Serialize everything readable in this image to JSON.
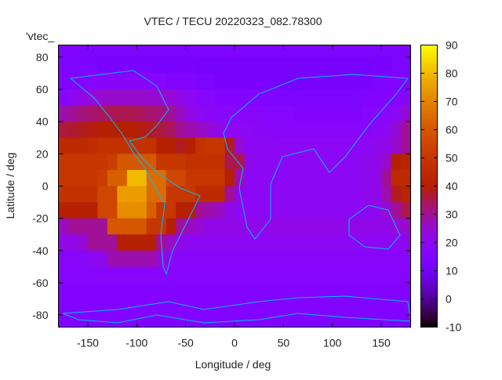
{
  "chart_data": {
    "type": "heatmap",
    "title": "VTEC / TECU 20220323_082.78300",
    "xlabel": "Longitude / deg",
    "ylabel": "Latitude / deg",
    "legend_key": "'vtec_",
    "xlim": [
      -180,
      180
    ],
    "ylim": [
      -87.5,
      87.5
    ],
    "xticks": [
      -150,
      -100,
      -50,
      0,
      50,
      100,
      150
    ],
    "yticks": [
      -80,
      -60,
      -40,
      -20,
      0,
      20,
      40,
      60,
      80
    ],
    "colorbar": {
      "range": [
        -10,
        90
      ],
      "ticks": [
        -10,
        0,
        10,
        20,
        30,
        40,
        50,
        60,
        70,
        80,
        90
      ]
    },
    "lon_centers": [
      -175,
      -165,
      -155,
      -145,
      -135,
      -125,
      -115,
      -105,
      -95,
      -85,
      -75,
      -65,
      -55,
      -45,
      -35,
      -25,
      -15,
      -5,
      5,
      15,
      25,
      35,
      45,
      55,
      65,
      75,
      85,
      95,
      105,
      115,
      125,
      135,
      145,
      155,
      165,
      175
    ],
    "lat_centers": [
      85,
      75,
      65,
      55,
      45,
      35,
      25,
      15,
      5,
      -5,
      -15,
      -25,
      -35,
      -45,
      -55,
      -65,
      -75,
      -85
    ],
    "values": [
      [
        14,
        14,
        14,
        14,
        14,
        14,
        14,
        14,
        14,
        14,
        14,
        14,
        14,
        14,
        14,
        14,
        14,
        14,
        14,
        14,
        14,
        14,
        14,
        14,
        14,
        14,
        14,
        14,
        14,
        14,
        14,
        14,
        14,
        14,
        14,
        14
      ],
      [
        14,
        14,
        14,
        14,
        13,
        13,
        13,
        13,
        13,
        13,
        13,
        13,
        13,
        13,
        12,
        12,
        12,
        12,
        12,
        12,
        12,
        12,
        12,
        12,
        12,
        12,
        12,
        12,
        12,
        12,
        12,
        12,
        13,
        13,
        14,
        14
      ],
      [
        15,
        15,
        16,
        17,
        18,
        18,
        18,
        18,
        18,
        17,
        17,
        16,
        16,
        15,
        14,
        14,
        13,
        13,
        13,
        13,
        13,
        13,
        12,
        12,
        12,
        12,
        12,
        12,
        12,
        12,
        13,
        13,
        14,
        14,
        15,
        15
      ],
      [
        18,
        20,
        22,
        24,
        25,
        25,
        25,
        25,
        25,
        25,
        25,
        24,
        22,
        20,
        18,
        17,
        16,
        15,
        15,
        15,
        15,
        15,
        14,
        14,
        14,
        14,
        14,
        14,
        14,
        14,
        14,
        15,
        15,
        16,
        17,
        18
      ],
      [
        28,
        30,
        32,
        33,
        34,
        35,
        35,
        35,
        34,
        33,
        32,
        30,
        26,
        22,
        20,
        19,
        18,
        18,
        18,
        18,
        18,
        17,
        17,
        17,
        16,
        16,
        16,
        16,
        16,
        16,
        16,
        17,
        17,
        18,
        20,
        24
      ],
      [
        36,
        37,
        38,
        39,
        40,
        40,
        40,
        40,
        39,
        38,
        36,
        34,
        30,
        28,
        26,
        24,
        22,
        20,
        20,
        20,
        19,
        19,
        18,
        18,
        18,
        18,
        18,
        18,
        18,
        18,
        18,
        18,
        19,
        20,
        24,
        30
      ],
      [
        45,
        45,
        45,
        46,
        48,
        48,
        48,
        48,
        48,
        48,
        40,
        40,
        38,
        40,
        48,
        50,
        50,
        38,
        24,
        20,
        20,
        20,
        20,
        20,
        20,
        20,
        20,
        20,
        20,
        20,
        20,
        20,
        21,
        22,
        25,
        30
      ],
      [
        50,
        50,
        50,
        50,
        50,
        52,
        60,
        60,
        60,
        60,
        50,
        50,
        50,
        48,
        48,
        48,
        48,
        35,
        35,
        22,
        20,
        20,
        20,
        20,
        20,
        20,
        20,
        20,
        20,
        20,
        20,
        21,
        22,
        25,
        40,
        42
      ],
      [
        50,
        50,
        50,
        50,
        52,
        62,
        62,
        80,
        80,
        65,
        65,
        55,
        55,
        50,
        50,
        50,
        50,
        40,
        28,
        20,
        20,
        20,
        20,
        20,
        20,
        20,
        20,
        20,
        20,
        20,
        20,
        21,
        22,
        30,
        45,
        45
      ],
      [
        48,
        48,
        48,
        48,
        55,
        55,
        75,
        75,
        75,
        65,
        65,
        50,
        50,
        50,
        45,
        45,
        45,
        30,
        22,
        20,
        20,
        20,
        20,
        20,
        20,
        20,
        20,
        20,
        20,
        20,
        20,
        21,
        22,
        28,
        38,
        42
      ],
      [
        40,
        40,
        40,
        40,
        55,
        55,
        72,
        72,
        72,
        62,
        50,
        50,
        40,
        40,
        30,
        28,
        26,
        22,
        20,
        20,
        20,
        20,
        20,
        20,
        20,
        20,
        20,
        20,
        20,
        20,
        20,
        20,
        21,
        24,
        30,
        35
      ],
      [
        26,
        30,
        30,
        30,
        30,
        60,
        60,
        60,
        60,
        50,
        50,
        40,
        30,
        26,
        24,
        22,
        22,
        22,
        22,
        22,
        22,
        22,
        22,
        22,
        22,
        22,
        22,
        22,
        22,
        22,
        22,
        22,
        22,
        22,
        24,
        25
      ],
      [
        22,
        22,
        24,
        30,
        30,
        30,
        40,
        40,
        40,
        40,
        30,
        26,
        22,
        20,
        20,
        20,
        20,
        20,
        20,
        20,
        20,
        20,
        20,
        20,
        20,
        20,
        20,
        20,
        20,
        20,
        20,
        20,
        20,
        20,
        20,
        21
      ],
      [
        18,
        18,
        18,
        20,
        22,
        28,
        28,
        28,
        28,
        28,
        24,
        20,
        18,
        18,
        18,
        18,
        18,
        18,
        18,
        18,
        18,
        18,
        18,
        18,
        18,
        18,
        18,
        18,
        18,
        18,
        18,
        18,
        18,
        18,
        18,
        18
      ],
      [
        17,
        17,
        17,
        17,
        18,
        18,
        18,
        18,
        18,
        18,
        18,
        17,
        17,
        17,
        17,
        17,
        17,
        17,
        17,
        17,
        17,
        17,
        17,
        17,
        17,
        17,
        17,
        17,
        17,
        17,
        17,
        17,
        17,
        17,
        17,
        17
      ],
      [
        16,
        16,
        16,
        16,
        16,
        16,
        16,
        16,
        16,
        16,
        16,
        16,
        16,
        16,
        16,
        16,
        16,
        16,
        16,
        16,
        16,
        16,
        16,
        16,
        16,
        16,
        16,
        16,
        16,
        16,
        16,
        16,
        16,
        16,
        16,
        16
      ],
      [
        16,
        16,
        16,
        16,
        16,
        16,
        16,
        16,
        16,
        16,
        16,
        16,
        16,
        16,
        16,
        16,
        16,
        16,
        16,
        16,
        16,
        16,
        16,
        16,
        16,
        16,
        16,
        16,
        16,
        16,
        16,
        16,
        16,
        16,
        16,
        16
      ],
      [
        15,
        15,
        15,
        15,
        15,
        15,
        15,
        15,
        15,
        15,
        15,
        15,
        15,
        15,
        15,
        15,
        15,
        15,
        15,
        15,
        15,
        15,
        15,
        15,
        15,
        15,
        15,
        15,
        15,
        15,
        15,
        15,
        15,
        15,
        15,
        15
      ]
    ],
    "coastline_color": "#00bfff",
    "grid": false
  }
}
